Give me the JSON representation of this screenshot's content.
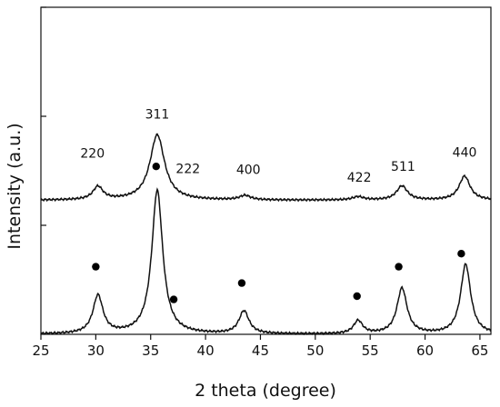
{
  "chart_data": {
    "type": "line",
    "xlabel": "2 theta (degree)",
    "ylabel": "Intensity (a.u.)",
    "xlim": [
      25,
      66
    ],
    "ylim": [
      0,
      3
    ],
    "x_ticks": [
      "25",
      "30",
      "35",
      "40",
      "45",
      "50",
      "55",
      "60",
      "65"
    ],
    "y_ticks": [
      1,
      2,
      3
    ],
    "grid": false,
    "legend": "none",
    "line_color": "#111111",
    "marker_color": "#000000",
    "series": [
      {
        "baseline": 0,
        "peaks": [
          {
            "x": 30.2,
            "height": 0.35,
            "width": 0.55
          },
          {
            "x": 35.6,
            "height": 1.32,
            "width": 0.6
          },
          {
            "x": 43.5,
            "height": 0.21,
            "width": 0.55
          },
          {
            "x": 53.9,
            "height": 0.12,
            "width": 0.5
          },
          {
            "x": 57.9,
            "height": 0.42,
            "width": 0.55
          },
          {
            "x": 63.7,
            "height": 0.64,
            "width": 0.55
          }
        ]
      },
      {
        "baseline": 1.23,
        "peaks": [
          {
            "x": 30.2,
            "height": 0.12,
            "width": 0.55
          },
          {
            "x": 35.6,
            "height": 0.6,
            "width": 0.8
          },
          {
            "x": 43.6,
            "height": 0.04,
            "width": 0.6
          },
          {
            "x": 53.9,
            "height": 0.03,
            "width": 0.6
          },
          {
            "x": 57.9,
            "height": 0.13,
            "width": 0.6
          },
          {
            "x": 63.6,
            "height": 0.22,
            "width": 0.6
          }
        ]
      }
    ],
    "markers": [
      {
        "x": 30.0,
        "y": 0.62
      },
      {
        "x": 35.5,
        "y": 1.54
      },
      {
        "x": 37.1,
        "y": 0.32
      },
      {
        "x": 43.3,
        "y": 0.47
      },
      {
        "x": 53.8,
        "y": 0.35
      },
      {
        "x": 57.6,
        "y": 0.62
      },
      {
        "x": 63.3,
        "y": 0.74
      }
    ],
    "peak_labels": [
      {
        "text": "220",
        "x": 29.7,
        "y": 1.62
      },
      {
        "text": "311",
        "x": 35.6,
        "y": 1.98
      },
      {
        "text": "222",
        "x": 38.4,
        "y": 1.48
      },
      {
        "text": "400",
        "x": 43.9,
        "y": 1.47
      },
      {
        "text": "422",
        "x": 54.0,
        "y": 1.4
      },
      {
        "text": "511",
        "x": 58.0,
        "y": 1.5
      },
      {
        "text": "440",
        "x": 63.6,
        "y": 1.63
      }
    ]
  }
}
